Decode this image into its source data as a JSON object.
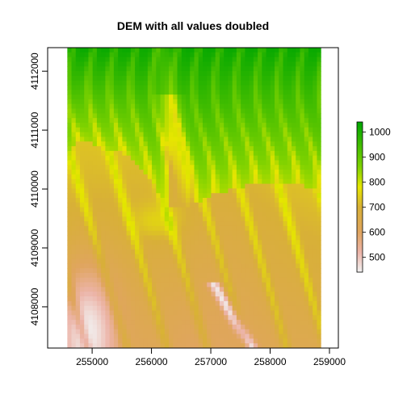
{
  "chart_data": {
    "type": "heatmap",
    "title": "DEM with all values doubled",
    "xlabel": "",
    "ylabel": "",
    "xlim": [
      254250,
      259150
    ],
    "ylim": [
      4107300,
      4112400
    ],
    "raster_extent": {
      "xmin": 254580,
      "xmax": 258860,
      "ymin": 4107300,
      "ymax": 4112400
    },
    "x_ticks": [
      {
        "value": 255000,
        "label": "255000"
      },
      {
        "value": 256000,
        "label": "256000"
      },
      {
        "value": 257000,
        "label": "257000"
      },
      {
        "value": 258000,
        "label": "258000"
      },
      {
        "value": 259000,
        "label": "259000"
      }
    ],
    "y_ticks": [
      {
        "value": 4108000,
        "label": "4108000"
      },
      {
        "value": 4109000,
        "label": "4109000"
      },
      {
        "value": 4110000,
        "label": "4110000"
      },
      {
        "value": 4111000,
        "label": "4111000"
      },
      {
        "value": 4112000,
        "label": "4112000"
      }
    ],
    "legend": {
      "range": [
        440,
        1040
      ],
      "ticks": [
        {
          "value": 500,
          "label": "500"
        },
        {
          "value": 600,
          "label": "600"
        },
        {
          "value": 700,
          "label": "700"
        },
        {
          "value": 800,
          "label": "800"
        },
        {
          "value": 900,
          "label": "900"
        },
        {
          "value": 1000,
          "label": "1000"
        }
      ],
      "placement": "right",
      "color_stops": [
        {
          "value": 440,
          "color": "#f2f2f2"
        },
        {
          "value": 520,
          "color": "#ecb4a8"
        },
        {
          "value": 600,
          "color": "#e0a55f"
        },
        {
          "value": 700,
          "color": "#d8b037"
        },
        {
          "value": 780,
          "color": "#e6e600"
        },
        {
          "value": 860,
          "color": "#7fd200"
        },
        {
          "value": 1040,
          "color": "#00a600"
        }
      ]
    },
    "grid": false
  }
}
